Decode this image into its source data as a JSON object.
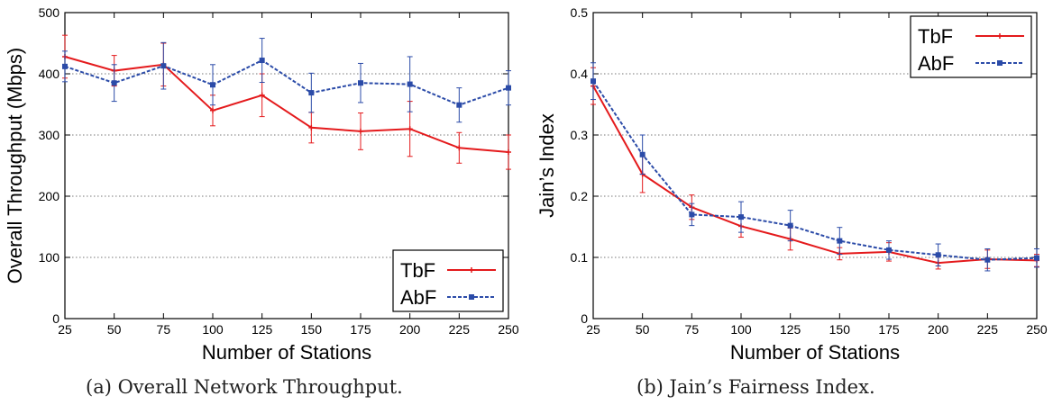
{
  "chart_data": [
    {
      "type": "line",
      "xlabel": "Number of Stations",
      "ylabel": "Overall Throughput (Mbps)",
      "x": [
        25,
        50,
        75,
        100,
        125,
        150,
        175,
        200,
        225,
        250
      ],
      "xlim": [
        25,
        250
      ],
      "ylim": [
        0,
        500
      ],
      "yticks": [
        "0",
        "100",
        "200",
        "300",
        "400",
        "500"
      ],
      "grid": "horizontal dotted",
      "legend_position": "bottom-right",
      "series": [
        {
          "name": "TbF",
          "color": "#e41a1c",
          "style": "solid",
          "marker": "plus",
          "values": [
            428,
            405,
            415,
            340,
            365,
            312,
            306,
            310,
            279,
            272
          ],
          "errors": [
            35,
            25,
            35,
            25,
            35,
            25,
            30,
            45,
            25,
            28
          ]
        },
        {
          "name": "AbF",
          "color": "#2b4ba8",
          "style": "dashed",
          "marker": "square",
          "values": [
            412,
            385,
            413,
            382,
            422,
            369,
            385,
            383,
            349,
            377
          ],
          "errors": [
            25,
            30,
            38,
            33,
            36,
            32,
            32,
            45,
            28,
            28
          ]
        }
      ]
    },
    {
      "type": "line",
      "xlabel": "Number of Stations",
      "ylabel": "Jain’s Index",
      "x": [
        25,
        50,
        75,
        100,
        125,
        150,
        175,
        200,
        225,
        250
      ],
      "xlim": [
        25,
        250
      ],
      "ylim": [
        0,
        0.5
      ],
      "yticks": [
        "0",
        "0.1",
        "0.2",
        "0.3",
        "0.4",
        "0.5"
      ],
      "grid": "horizontal dotted",
      "legend_position": "top-right",
      "series": [
        {
          "name": "TbF",
          "color": "#e41a1c",
          "style": "solid",
          "marker": "plus",
          "values": [
            0.38,
            0.236,
            0.182,
            0.151,
            0.13,
            0.106,
            0.109,
            0.091,
            0.097,
            0.095
          ],
          "errors": [
            0.03,
            0.03,
            0.02,
            0.018,
            0.018,
            0.01,
            0.015,
            0.01,
            0.015,
            0.01
          ]
        },
        {
          "name": "AbF",
          "color": "#2b4ba8",
          "style": "dashed",
          "marker": "square",
          "values": [
            0.388,
            0.268,
            0.17,
            0.166,
            0.152,
            0.127,
            0.112,
            0.104,
            0.096,
            0.099
          ],
          "errors": [
            0.03,
            0.032,
            0.018,
            0.025,
            0.025,
            0.022,
            0.015,
            0.018,
            0.018,
            0.015
          ]
        }
      ]
    }
  ],
  "captions": {
    "a": "(a) Overall Network Throughput.",
    "b": "(b) Jain’s Fairness Index."
  }
}
